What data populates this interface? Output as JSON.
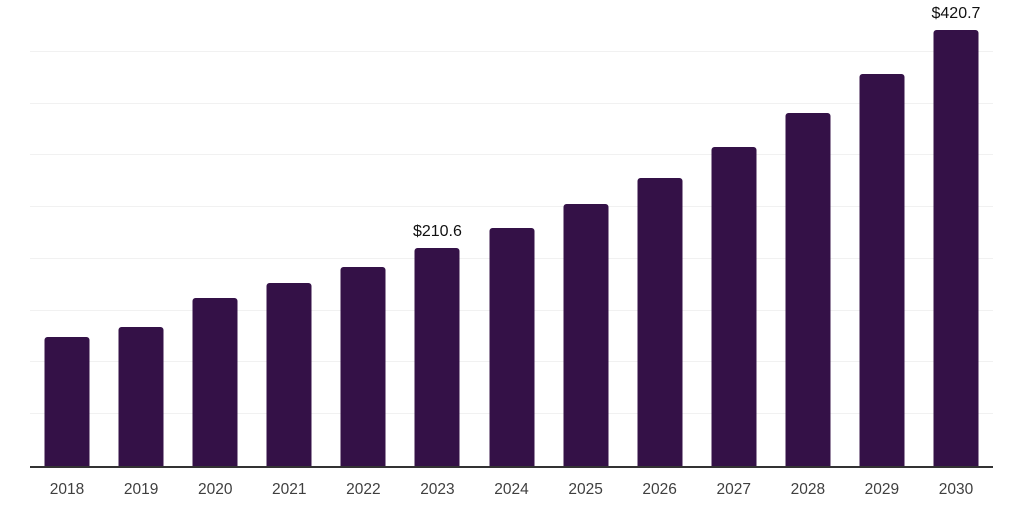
{
  "chart_data": {
    "type": "bar",
    "title": "",
    "xlabel": "",
    "ylabel": "",
    "categories": [
      "2018",
      "2019",
      "2020",
      "2021",
      "2022",
      "2023",
      "2024",
      "2025",
      "2026",
      "2027",
      "2028",
      "2029",
      "2030"
    ],
    "values": [
      124.5,
      134,
      162,
      176.5,
      192,
      210.6,
      230,
      253,
      278,
      308,
      341,
      378.5,
      420.7
    ],
    "data_labels": {
      "2023": "$210.6",
      "2030": "$420.7"
    },
    "ylim": [
      0,
      450
    ],
    "grid": {
      "show": true,
      "interval": 50,
      "orientation": "horizontal"
    },
    "legend": "none",
    "bar_color": "#341147"
  },
  "colors": {
    "background": "#ffffff",
    "bar": "#341147",
    "gridline": "#f1f1f1",
    "axis_line": "#333333",
    "tick_label": "#3f3f3f",
    "data_label": "#111111"
  }
}
